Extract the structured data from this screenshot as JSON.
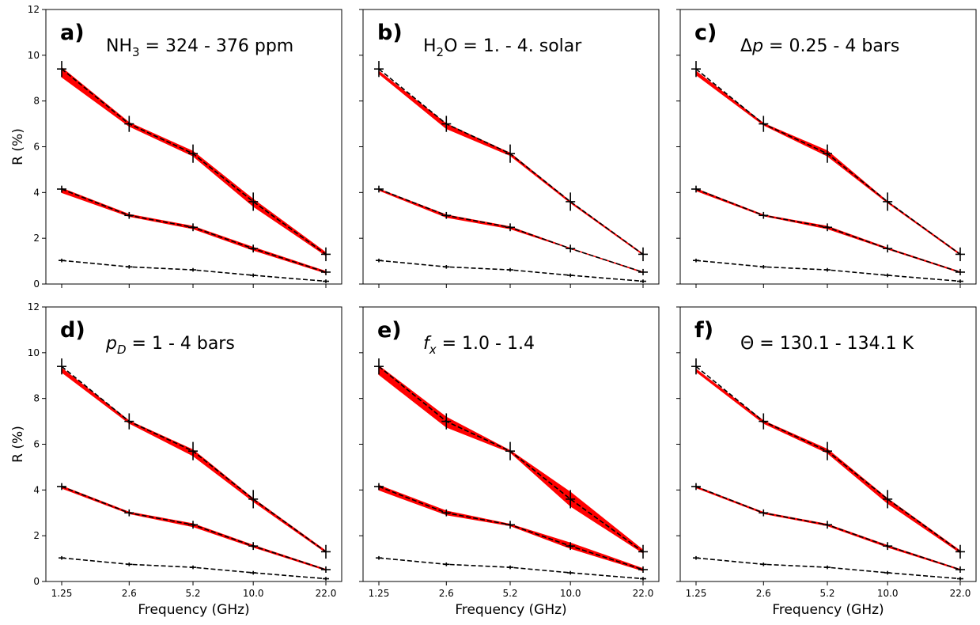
{
  "chart_data": {
    "type": "line",
    "layout": "2 rows x 3 columns, shared axes",
    "ylabel": "R (%)",
    "xlabel": "Frequency (GHz)",
    "x": [
      1.25,
      2.6,
      5.2,
      10.0,
      22.0
    ],
    "x_tick_labels": [
      "1.25",
      "2.6",
      "5.2",
      "10.0",
      "22.0"
    ],
    "x_scale": "log",
    "ylim": [
      0,
      12
    ],
    "y_ticks": [
      0,
      2,
      4,
      6,
      8,
      10,
      12
    ],
    "y_tick_labels": [
      "0",
      "2",
      "4",
      "6",
      "8",
      "10",
      "12"
    ],
    "colors": {
      "band": "#ff0000",
      "model_line": "#000000",
      "frame": "#000000"
    },
    "observed": {
      "line_style": "dashed",
      "series": [
        {
          "values": [
            9.4,
            7.0,
            5.7,
            3.6,
            1.3
          ],
          "errors": [
            0.35,
            0.35,
            0.4,
            0.4,
            0.3
          ]
        },
        {
          "values": [
            4.15,
            3.0,
            2.48,
            1.55,
            0.52
          ],
          "errors": [
            0.15,
            0.15,
            0.17,
            0.17,
            0.14
          ]
        },
        {
          "values": [
            1.03,
            0.75,
            0.62,
            0.38,
            0.12
          ],
          "errors": [
            0.08,
            0.08,
            0.08,
            0.08,
            0.08
          ]
        }
      ]
    },
    "panels": [
      {
        "letter": "a)",
        "label": {
          "pre": "NH",
          "sub": "3",
          "post": " = 324 - 376 ppm"
        },
        "bands": [
          {
            "low": [
              9.05,
              6.9,
              5.6,
              3.4,
              1.25
            ],
            "high": [
              9.45,
              7.05,
              5.8,
              3.7,
              1.37
            ]
          },
          {
            "low": [
              4.0,
              2.96,
              2.42,
              1.48,
              0.48
            ],
            "high": [
              4.18,
              3.04,
              2.52,
              1.6,
              0.55
            ]
          }
        ]
      },
      {
        "letter": "b)",
        "label": {
          "pre": "H",
          "sub": "2",
          "post": "O = 1. - 4. solar"
        },
        "bands": [
          {
            "low": [
              9.2,
              6.8,
              5.62,
              3.55,
              1.28
            ],
            "high": [
              9.3,
              7.0,
              5.72,
              3.6,
              1.31
            ]
          },
          {
            "low": [
              4.1,
              2.92,
              2.42,
              1.55,
              0.5
            ],
            "high": [
              4.15,
              3.02,
              2.5,
              1.56,
              0.52
            ]
          }
        ]
      },
      {
        "letter": "c)",
        "label": {
          "pre": "Δ",
          "italic": "p",
          "post": " = 0.25 - 4 bars"
        },
        "bands": [
          {
            "low": [
              9.15,
              6.95,
              5.6,
              3.55,
              1.28
            ],
            "high": [
              9.3,
              7.02,
              5.82,
              3.6,
              1.32
            ]
          },
          {
            "low": [
              4.08,
              2.98,
              2.42,
              1.53,
              0.5
            ],
            "high": [
              4.16,
              3.02,
              2.52,
              1.57,
              0.53
            ]
          }
        ]
      },
      {
        "letter": "d)",
        "label": {
          "italic": "p",
          "italic_sub": "D",
          "post": " = 1 - 4 bars"
        },
        "bands": [
          {
            "low": [
              9.15,
              6.92,
              5.5,
              3.5,
              1.27
            ],
            "high": [
              9.32,
              7.02,
              5.75,
              3.62,
              1.33
            ]
          },
          {
            "low": [
              4.08,
              2.97,
              2.4,
              1.5,
              0.49
            ],
            "high": [
              4.17,
              3.03,
              2.52,
              1.58,
              0.53
            ]
          }
        ]
      },
      {
        "letter": "e)",
        "label": {
          "italic": "f",
          "italic_sub": "x",
          "post": " = 1.0 - 1.4"
        },
        "bands": [
          {
            "low": [
              9.05,
              6.75,
              5.65,
              3.3,
              1.25
            ],
            "high": [
              9.42,
              7.18,
              5.72,
              3.9,
              1.37
            ]
          },
          {
            "low": [
              4.0,
              2.92,
              2.44,
              1.45,
              0.47
            ],
            "high": [
              4.2,
              3.08,
              2.5,
              1.68,
              0.56
            ]
          }
        ]
      },
      {
        "letter": "f)",
        "label": {
          "pre": "Θ = 130.1 - 134.1 K"
        },
        "bands": [
          {
            "low": [
              9.18,
              6.92,
              5.62,
              3.42,
              1.26
            ],
            "high": [
              9.28,
              7.02,
              5.78,
              3.62,
              1.34
            ]
          },
          {
            "low": [
              4.1,
              2.97,
              2.44,
              1.5,
              0.5
            ],
            "high": [
              4.15,
              3.02,
              2.5,
              1.57,
              0.53
            ]
          }
        ]
      }
    ]
  }
}
